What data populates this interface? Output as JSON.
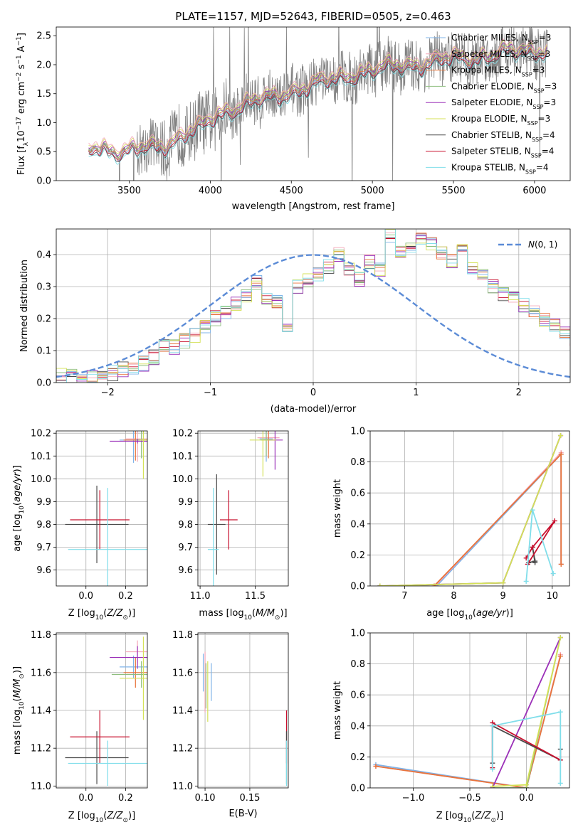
{
  "title": "PLATE=1157, MJD=52643, FIBERID=0505, z=0.463",
  "colors": {
    "data": "#808080",
    "model_palette": [
      "#4a4a4a",
      "#c8102e",
      "#f4a6b8",
      "#7fb3e8",
      "#e8743b",
      "#8fbf7f",
      "#9b30b8",
      "#d4e157",
      "#80deea"
    ],
    "gauss": "#5b8bd6"
  },
  "legend": [
    {
      "text": "Chabrier MILES, N_SSP=3",
      "base": "Chabrier MILES, N",
      "sub": "SSP",
      "tail": "=3",
      "color": "#7fb3e8"
    },
    {
      "text": "Salpeter MILES, N_SSP=3",
      "base": "Salpeter MILES, N",
      "sub": "SSP",
      "tail": "=3",
      "color": "#f4a6b8"
    },
    {
      "text": "Kroupa MILES, N_SSP=3",
      "base": "Kroupa MILES, N",
      "sub": "SSP",
      "tail": "=3",
      "color": "#e8743b"
    },
    {
      "text": "Chabrier ELODIE, N_SSP=3",
      "base": "Chabrier ELODIE, N",
      "sub": "SSP",
      "tail": "=3",
      "color": "#8fbf7f"
    },
    {
      "text": "Salpeter ELODIE, N_SSP=3",
      "base": "Salpeter ELODIE, N",
      "sub": "SSP",
      "tail": "=3",
      "color": "#9b30b8"
    },
    {
      "text": "Kroupa ELODIE, N_SSP=3",
      "base": "Kroupa ELODIE, N",
      "sub": "SSP",
      "tail": "=3",
      "color": "#d4e157"
    },
    {
      "text": "Chabrier STELIB, N_SSP=4",
      "base": "Chabrier STELIB, N",
      "sub": "SSP",
      "tail": "=4",
      "color": "#4a4a4a"
    },
    {
      "text": "Salpeter STELIB, N_SSP=4",
      "base": "Salpeter STELIB, N",
      "sub": "SSP",
      "tail": "=4",
      "color": "#c8102e"
    },
    {
      "text": "Kroupa STELIB, N_SSP=4",
      "base": "Kroupa STELIB, N",
      "sub": "SSP",
      "tail": "=4",
      "color": "#80deea"
    }
  ],
  "chart_data": [
    {
      "id": "spectrum",
      "type": "line",
      "title": "PLATE=1157, MJD=52643, FIBERID=0505, z=0.463",
      "xlabel": "wavelength [Angstrom, rest frame]",
      "ylabel": "Flux [f_λ 10^-17 erg cm^-2 s^-1 A^-1]",
      "xlim": [
        3050,
        6220
      ],
      "ylim": [
        0,
        2.65
      ],
      "xticks": [
        3500,
        4000,
        4500,
        5000,
        5500,
        6000
      ],
      "yticks": [
        0.0,
        0.5,
        1.0,
        1.5,
        2.0,
        2.5
      ],
      "x_range": [
        3250,
        6080
      ],
      "continuum": {
        "x": [
          3250,
          3300,
          3350,
          3400,
          3450,
          3500,
          3550,
          3600,
          3650,
          3700,
          3750,
          3800,
          3850,
          3900,
          3950,
          4000,
          4050,
          4100,
          4200,
          4300,
          4400,
          4500,
          4600,
          4700,
          4800,
          4900,
          5000,
          5100,
          5200,
          5300,
          5400,
          5500,
          5600,
          5700,
          5800,
          5900,
          6000,
          6080
        ],
        "y": [
          0.55,
          0.62,
          0.58,
          0.52,
          0.48,
          0.5,
          0.52,
          0.58,
          0.6,
          0.62,
          0.66,
          0.74,
          0.8,
          0.86,
          0.92,
          1.05,
          1.15,
          1.22,
          1.3,
          1.38,
          1.45,
          1.55,
          1.62,
          1.7,
          1.78,
          1.86,
          1.9,
          1.95,
          2.0,
          2.02,
          2.06,
          2.1,
          2.12,
          2.16,
          2.2,
          2.22,
          2.25,
          2.28
        ]
      },
      "series_names": [
        "Chabrier MILES, N_SSP=3",
        "Salpeter MILES, N_SSP=3",
        "Kroupa MILES, N_SSP=3",
        "Chabrier ELODIE, N_SSP=3",
        "Salpeter ELODIE, N_SSP=3",
        "Kroupa ELODIE, N_SSP=3",
        "Chabrier STELIB, N_SSP=4",
        "Salpeter STELIB, N_SSP=4",
        "Kroupa STELIB, N_SSP=4"
      ],
      "legend_position": "upper right"
    },
    {
      "id": "residuals",
      "type": "histogram",
      "xlabel": "(data-model)/error",
      "ylabel": "Normed distribution",
      "xlim": [
        -2.5,
        2.5
      ],
      "ylim": [
        0,
        0.48
      ],
      "xticks": [
        -2,
        -1,
        0,
        1,
        2
      ],
      "yticks": [
        0.0,
        0.1,
        0.2,
        0.3,
        0.4
      ],
      "grid": true,
      "bin_width": 0.1,
      "bin_start": -2.5,
      "reference_values": [
        0.02,
        0.03,
        0.01,
        0.02,
        0.03,
        0.03,
        0.04,
        0.05,
        0.06,
        0.08,
        0.12,
        0.11,
        0.13,
        0.15,
        0.17,
        0.2,
        0.22,
        0.25,
        0.27,
        0.31,
        0.26,
        0.25,
        0.18,
        0.3,
        0.32,
        0.34,
        0.36,
        0.4,
        0.36,
        0.32,
        0.38,
        0.35,
        0.46,
        0.41,
        0.42,
        0.45,
        0.43,
        0.4,
        0.38,
        0.42,
        0.36,
        0.33,
        0.3,
        0.28,
        0.26,
        0.24,
        0.22,
        0.2,
        0.18,
        0.16,
        0.14,
        0.13,
        0.12,
        0.11,
        0.09,
        0.08,
        0.07,
        0.06,
        0.05,
        0.05
      ],
      "gaussian_label": "N(0,1)",
      "legend_position": "upper right"
    },
    {
      "id": "age_vs_Z",
      "type": "errorbar",
      "xlabel": "Z [log10(Z/Z⊙)]",
      "ylabel": "age  [log10(age/yr)]",
      "xlim": [
        -0.15,
        0.31
      ],
      "ylim": [
        9.53,
        10.21
      ],
      "xticks": [
        0.0,
        0.2
      ],
      "yticks": [
        9.6,
        9.7,
        9.8,
        9.9,
        10.0,
        10.1,
        10.2
      ],
      "points": [
        {
          "x": 0.055,
          "y": 9.8,
          "xerr": 0.16,
          "yerr": 0.17,
          "color": "#4a4a4a"
        },
        {
          "x": 0.07,
          "y": 9.82,
          "xerr": 0.15,
          "yerr": 0.13,
          "color": "#c8102e"
        },
        {
          "x": 0.11,
          "y": 9.69,
          "xerr": 0.2,
          "yerr": 0.27,
          "color": "#80deea"
        },
        {
          "x": 0.24,
          "y": 10.17,
          "xerr": 0.07,
          "yerr": 0.1,
          "color": "#7fb3e8"
        },
        {
          "x": 0.26,
          "y": 10.175,
          "xerr": 0.06,
          "yerr": 0.1,
          "color": "#f4a6b8"
        },
        {
          "x": 0.25,
          "y": 10.17,
          "xerr": 0.06,
          "yerr": 0.09,
          "color": "#e8743b"
        },
        {
          "x": 0.28,
          "y": 10.17,
          "xerr": 0.03,
          "yerr": 0.08,
          "color": "#8fbf7f"
        },
        {
          "x": 0.26,
          "y": 10.165,
          "xerr": 0.14,
          "yerr": 0.01,
          "color": "#9b30b8"
        },
        {
          "x": 0.29,
          "y": 10.17,
          "xerr": 0.02,
          "yerr": 0.17,
          "color": "#d4e157"
        }
      ]
    },
    {
      "id": "age_vs_mass",
      "type": "errorbar",
      "xlabel": "mass [log10(M/M⊙)]",
      "ylabel": "",
      "xlim": [
        10.98,
        11.8
      ],
      "ylim": [
        9.53,
        10.21
      ],
      "xticks": [
        11.0,
        11.5
      ],
      "yticks": [
        9.6,
        9.7,
        9.8,
        9.9,
        10.0,
        10.1,
        10.2
      ],
      "points": [
        {
          "x": 11.15,
          "y": 9.8,
          "xerr": 0.08,
          "yerr": 0.22,
          "color": "#4a4a4a"
        },
        {
          "x": 11.26,
          "y": 9.82,
          "xerr": 0.08,
          "yerr": 0.13,
          "color": "#c8102e"
        },
        {
          "x": 11.12,
          "y": 9.69,
          "xerr": 0.05,
          "yerr": 0.27,
          "color": "#80deea"
        },
        {
          "x": 11.6,
          "y": 10.175,
          "xerr": 0.06,
          "yerr": 0.1,
          "color": "#7fb3e8"
        },
        {
          "x": 11.62,
          "y": 10.18,
          "xerr": 0.1,
          "yerr": 0.07,
          "color": "#f4a6b8"
        },
        {
          "x": 11.62,
          "y": 10.17,
          "xerr": 0.06,
          "yerr": 0.08,
          "color": "#e8743b"
        },
        {
          "x": 11.6,
          "y": 10.17,
          "xerr": 0.05,
          "yerr": 0.07,
          "color": "#8fbf7f"
        },
        {
          "x": 11.68,
          "y": 10.17,
          "xerr": 0.07,
          "yerr": 0.13,
          "color": "#9b30b8"
        },
        {
          "x": 11.57,
          "y": 10.17,
          "xerr": 0.12,
          "yerr": 0.16,
          "color": "#d4e157"
        }
      ]
    },
    {
      "id": "weight_vs_age",
      "type": "line",
      "xlabel": "age  [log10(age/yr)]",
      "ylabel": "mass weight",
      "xlim": [
        6.3,
        10.35
      ],
      "ylim": [
        0,
        1.0
      ],
      "xticks": [
        7,
        8,
        9,
        10
      ],
      "yticks": [
        0.0,
        0.2,
        0.4,
        0.6,
        0.8,
        1.0
      ],
      "grid": true,
      "series": [
        {
          "name": "Chabrier MILES",
          "color": "#7fb3e8",
          "x": [
            7.65,
            10.18,
            10.18
          ],
          "y": [
            0.0,
            0.85,
            0.14
          ]
        },
        {
          "name": "Salpeter MILES",
          "color": "#f4a6b8",
          "x": [
            7.62,
            10.18,
            10.18
          ],
          "y": [
            0.0,
            0.86,
            0.14
          ]
        },
        {
          "name": "Kroupa MILES",
          "color": "#e8743b",
          "x": [
            7.6,
            10.18,
            10.18
          ],
          "y": [
            0.0,
            0.85,
            0.14
          ]
        },
        {
          "name": "Chabrier ELODIE",
          "color": "#8fbf7f",
          "x": [
            6.5,
            9.0,
            10.17
          ],
          "y": [
            0.0,
            0.02,
            0.97
          ]
        },
        {
          "name": "Salpeter ELODIE",
          "color": "#9b30b8",
          "x": [
            6.5,
            9.0,
            10.17
          ],
          "y": [
            0.0,
            0.02,
            0.97
          ]
        },
        {
          "name": "Kroupa ELODIE",
          "color": "#d4e157",
          "x": [
            6.5,
            9.0,
            10.17
          ],
          "y": [
            0.0,
            0.02,
            0.97
          ]
        },
        {
          "name": "Chabrier STELIB",
          "color": "#4a4a4a",
          "x": [
            9.52,
            9.65,
            9.6,
            9.65
          ],
          "y": [
            0.15,
            0.16,
            0.25,
            0.15
          ]
        },
        {
          "name": "Salpeter STELIB",
          "color": "#c8102e",
          "x": [
            9.47,
            9.6,
            10.05,
            9.5
          ],
          "y": [
            0.18,
            0.25,
            0.42,
            0.14
          ]
        },
        {
          "name": "Kroupa STELIB",
          "color": "#80deea",
          "x": [
            9.47,
            9.6,
            10.02
          ],
          "y": [
            0.03,
            0.49,
            0.08
          ]
        }
      ]
    },
    {
      "id": "mass_vs_Z",
      "type": "errorbar",
      "xlabel": "Z [log10(Z/Z⊙)]",
      "ylabel": "mass [log10(M/M⊙)]",
      "xlim": [
        -0.15,
        0.31
      ],
      "ylim": [
        10.99,
        11.81
      ],
      "xticks": [
        0.0,
        0.2
      ],
      "yticks": [
        11.0,
        11.2,
        11.4,
        11.6,
        11.8
      ],
      "points": [
        {
          "x": 0.055,
          "y": 11.15,
          "xerr": 0.16,
          "yerr": 0.14,
          "color": "#4a4a4a"
        },
        {
          "x": 0.07,
          "y": 11.26,
          "xerr": 0.15,
          "yerr": 0.14,
          "color": "#c8102e"
        },
        {
          "x": 0.11,
          "y": 11.12,
          "xerr": 0.2,
          "yerr": 0.12,
          "color": "#80deea"
        },
        {
          "x": 0.24,
          "y": 11.63,
          "xerr": 0.07,
          "yerr": 0.06,
          "color": "#7fb3e8"
        },
        {
          "x": 0.26,
          "y": 11.71,
          "xerr": 0.06,
          "yerr": 0.06,
          "color": "#f4a6b8"
        },
        {
          "x": 0.25,
          "y": 11.6,
          "xerr": 0.06,
          "yerr": 0.08,
          "color": "#e8743b"
        },
        {
          "x": 0.28,
          "y": 11.59,
          "xerr": 0.15,
          "yerr": 0.07,
          "color": "#8fbf7f"
        },
        {
          "x": 0.26,
          "y": 11.68,
          "xerr": 0.14,
          "yerr": 0.06,
          "color": "#9b30b8"
        },
        {
          "x": 0.29,
          "y": 11.57,
          "xerr": 0.12,
          "yerr": 0.22,
          "color": "#d4e157"
        }
      ]
    },
    {
      "id": "mass_vs_EBV",
      "type": "errorbar",
      "xlabel": "E(B-V)",
      "ylabel": "",
      "xlim": [
        0.092,
        0.193
      ],
      "ylim": [
        10.99,
        11.81
      ],
      "xticks": [
        0.1,
        0.15
      ],
      "yticks": [
        11.0,
        11.2,
        11.4,
        11.6,
        11.8
      ],
      "points": [
        {
          "x": 0.1,
          "y": 11.55,
          "xerr": 0.0,
          "yerr": 0.16,
          "color": "#f4a6b8"
        },
        {
          "x": 0.098,
          "y": 11.6,
          "xerr": 0.0,
          "yerr": 0.1,
          "color": "#7fb3e8"
        },
        {
          "x": 0.103,
          "y": 11.5,
          "xerr": 0.0,
          "yerr": 0.16,
          "color": "#d4e157"
        },
        {
          "x": 0.101,
          "y": 11.53,
          "xerr": 0.0,
          "yerr": 0.12,
          "color": "#8fbf7f"
        },
        {
          "x": 0.107,
          "y": 11.55,
          "xerr": 0.0,
          "yerr": 0.1,
          "color": "#7fb3e8"
        },
        {
          "x": 0.191,
          "y": 11.26,
          "xerr": 0.0,
          "yerr": 0.14,
          "color": "#c8102e"
        },
        {
          "x": 0.191,
          "y": 11.15,
          "xerr": 0.0,
          "yerr": 0.14,
          "color": "#4a4a4a"
        },
        {
          "x": 0.191,
          "y": 11.12,
          "xerr": 0.0,
          "yerr": 0.12,
          "color": "#80deea"
        }
      ]
    },
    {
      "id": "weight_vs_Z",
      "type": "line",
      "xlabel": "Z [log10(Z/Z⊙)]",
      "ylabel": "mass weight",
      "xlim": [
        -1.38,
        0.38
      ],
      "ylim": [
        0,
        1.0
      ],
      "xticks": [
        -1.0,
        -0.5,
        0.0
      ],
      "yticks": [
        0.0,
        0.2,
        0.4,
        0.6,
        0.8,
        1.0
      ],
      "grid": true,
      "series": [
        {
          "name": "Chabrier MILES",
          "color": "#7fb3e8",
          "x": [
            -1.33,
            0.0,
            0.3
          ],
          "y": [
            0.15,
            0.0,
            0.85
          ]
        },
        {
          "name": "Salpeter MILES",
          "color": "#f4a6b8",
          "x": [
            -1.33,
            0.0,
            0.3
          ],
          "y": [
            0.14,
            0.0,
            0.86
          ]
        },
        {
          "name": "Kroupa MILES",
          "color": "#e8743b",
          "x": [
            -1.33,
            0.0,
            0.3
          ],
          "y": [
            0.14,
            0.0,
            0.85
          ]
        },
        {
          "name": "Chabrier ELODIE",
          "color": "#8fbf7f",
          "x": [
            -0.3,
            0.0,
            0.3
          ],
          "y": [
            0.0,
            0.0,
            0.97
          ]
        },
        {
          "name": "Salpeter ELODIE",
          "color": "#9b30b8",
          "x": [
            -0.3,
            0.3
          ],
          "y": [
            0.0,
            0.97
          ]
        },
        {
          "name": "Kroupa ELODIE",
          "color": "#d4e157",
          "x": [
            -0.3,
            0.0,
            0.3
          ],
          "y": [
            0.01,
            0.02,
            0.97
          ]
        },
        {
          "name": "Chabrier STELIB",
          "color": "#4a4a4a",
          "x": [
            -0.3,
            -0.3,
            0.3,
            0.3
          ],
          "y": [
            0.16,
            0.4,
            0.18,
            0.25
          ]
        },
        {
          "name": "Salpeter STELIB",
          "color": "#c8102e",
          "x": [
            -0.3,
            -0.3,
            0.3
          ],
          "y": [
            0.13,
            0.42,
            0.18
          ]
        },
        {
          "name": "Kroupa STELIB",
          "color": "#80deea",
          "x": [
            -0.3,
            -0.3,
            0.3,
            0.3
          ],
          "y": [
            0.12,
            0.4,
            0.49,
            0.03
          ]
        }
      ]
    }
  ]
}
